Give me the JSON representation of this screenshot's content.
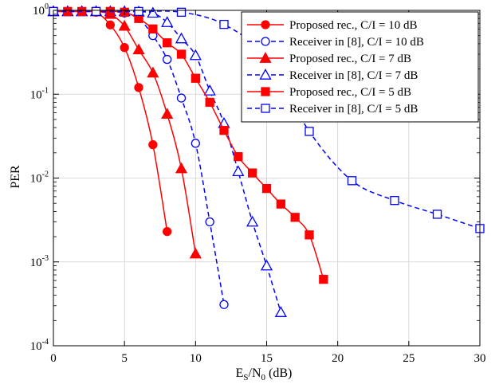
{
  "chart_data": {
    "type": "line",
    "xlabel_main": "E",
    "xlabel_sub1": "S",
    "xlabel_mid": "/N",
    "xlabel_sub2": "0",
    "xlabel_tail": " (dB)",
    "ylabel": "PER",
    "xlim": [
      0,
      30
    ],
    "ylim": [
      0.0001,
      1
    ],
    "yscale": "log",
    "grid": true,
    "legend_position": "top-right",
    "x_ticks": [
      0,
      5,
      10,
      15,
      20,
      25,
      30
    ],
    "x_tick_labels": [
      "0",
      "5",
      "10",
      "15",
      "20",
      "25",
      "30"
    ],
    "y_ticks": [
      {
        "base": "10",
        "exp": "0",
        "value": 1
      },
      {
        "base": "10",
        "exp": "-1",
        "value": 0.1
      },
      {
        "base": "10",
        "exp": "-2",
        "value": 0.01
      },
      {
        "base": "10",
        "exp": "-3",
        "value": 0.001
      },
      {
        "base": "10",
        "exp": "-4",
        "value": 0.0001
      }
    ],
    "series": [
      {
        "name": "Proposed rec., C/I = 10 dB",
        "color": "#ff0000",
        "dash": "solid",
        "marker": "circle-filled",
        "points": [
          [
            0,
            0.97
          ],
          [
            1,
            0.97
          ],
          [
            2,
            0.97
          ],
          [
            3,
            0.95
          ],
          [
            4,
            0.67
          ],
          [
            5,
            0.36
          ],
          [
            6,
            0.12
          ],
          [
            7,
            0.025
          ],
          [
            8,
            0.0023
          ]
        ]
      },
      {
        "name": "Receiver in [8], C/I = 10 dB",
        "color": "#0000ff",
        "dash": "dashed",
        "marker": "circle-open",
        "points": [
          [
            0,
            0.97
          ],
          [
            1,
            0.97
          ],
          [
            2,
            0.97
          ],
          [
            3,
            0.97
          ],
          [
            4,
            0.97
          ],
          [
            5,
            0.93
          ],
          [
            6,
            0.8
          ],
          [
            7,
            0.5
          ],
          [
            8,
            0.26
          ],
          [
            9,
            0.09
          ],
          [
            10,
            0.026
          ],
          [
            11,
            0.003
          ],
          [
            12,
            0.00031
          ]
        ]
      },
      {
        "name": "Proposed rec., C/I = 7 dB",
        "color": "#ff0000",
        "dash": "solid",
        "marker": "triangle-filled",
        "points": [
          [
            0,
            0.97
          ],
          [
            1,
            0.97
          ],
          [
            2,
            0.97
          ],
          [
            3,
            0.97
          ],
          [
            4,
            0.9
          ],
          [
            5,
            0.65
          ],
          [
            6,
            0.34
          ],
          [
            7,
            0.18
          ],
          [
            8,
            0.058
          ],
          [
            9,
            0.013
          ],
          [
            10,
            0.00125
          ]
        ]
      },
      {
        "name": "Receiver in [8], C/I = 7 dB",
        "color": "#0000ff",
        "dash": "dashed",
        "marker": "triangle-open",
        "points": [
          [
            0,
            0.97
          ],
          [
            1,
            0.97
          ],
          [
            2,
            0.97
          ],
          [
            3,
            0.97
          ],
          [
            4,
            0.97
          ],
          [
            5,
            0.97
          ],
          [
            6,
            0.96
          ],
          [
            7,
            0.93
          ],
          [
            8,
            0.72
          ],
          [
            9,
            0.46
          ],
          [
            10,
            0.29
          ],
          [
            11,
            0.11
          ],
          [
            12,
            0.045
          ],
          [
            13,
            0.012
          ],
          [
            14,
            0.003
          ],
          [
            15,
            0.0009
          ],
          [
            16,
            0.00025
          ]
        ]
      },
      {
        "name": "Proposed rec., C/I = 5 dB",
        "color": "#ff0000",
        "dash": "solid",
        "marker": "square-filled",
        "points": [
          [
            0,
            0.97
          ],
          [
            1,
            0.97
          ],
          [
            2,
            0.97
          ],
          [
            3,
            0.97
          ],
          [
            4,
            0.97
          ],
          [
            5,
            0.95
          ],
          [
            6,
            0.8
          ],
          [
            7,
            0.6
          ],
          [
            8,
            0.41
          ],
          [
            9,
            0.3
          ],
          [
            10,
            0.155
          ],
          [
            11,
            0.08
          ],
          [
            12,
            0.037
          ],
          [
            13,
            0.018
          ],
          [
            14,
            0.0115
          ],
          [
            15,
            0.0075
          ],
          [
            16,
            0.0049
          ],
          [
            17,
            0.0034
          ],
          [
            18,
            0.0021
          ],
          [
            19,
            0.00062
          ]
        ]
      },
      {
        "name": "Receiver in [8], C/I = 5 dB",
        "color": "#0000ff",
        "dash": "dashed",
        "marker": "square-open",
        "points": [
          [
            0,
            0.97
          ],
          [
            3,
            0.97
          ],
          [
            6,
            0.97
          ],
          [
            9,
            0.95
          ],
          [
            12,
            0.68
          ],
          [
            15,
            0.27
          ],
          [
            18,
            0.036
          ],
          [
            21,
            0.0093
          ],
          [
            24,
            0.0054
          ],
          [
            27,
            0.0037
          ],
          [
            30,
            0.0025
          ]
        ]
      }
    ]
  }
}
